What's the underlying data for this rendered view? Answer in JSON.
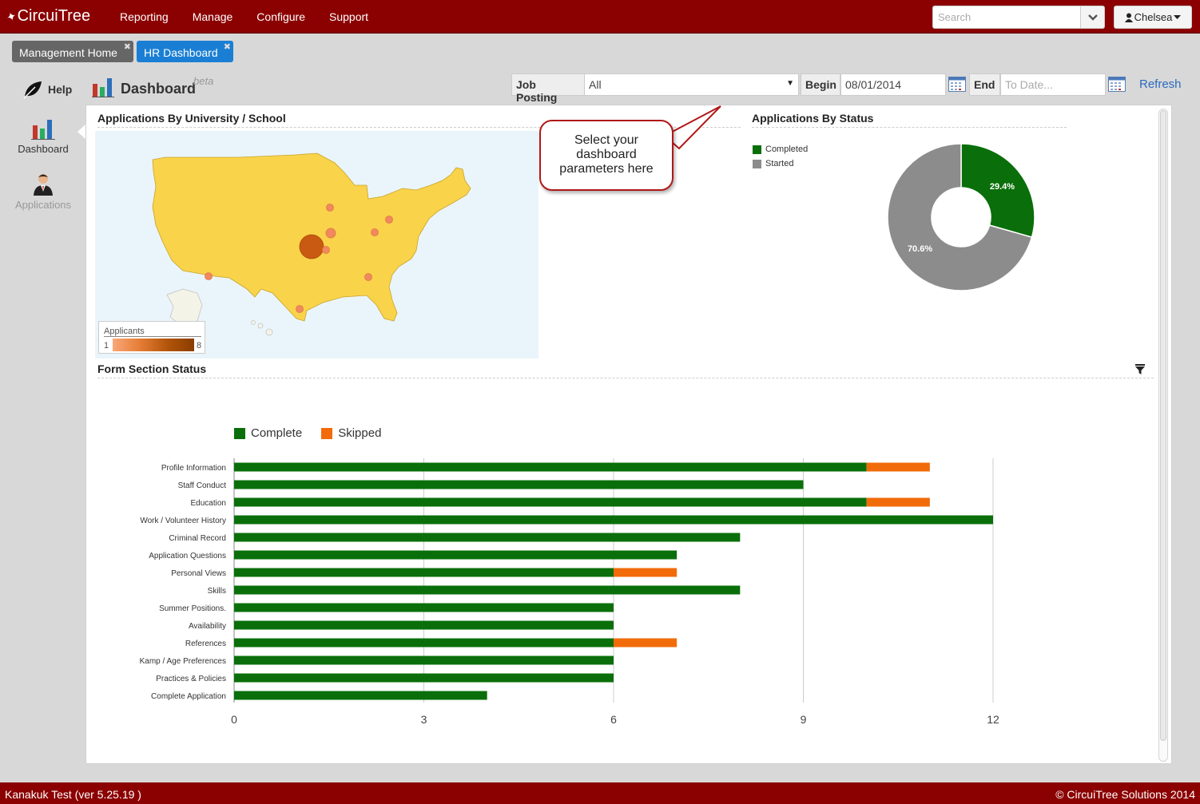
{
  "app": {
    "brand": "CircuiTree"
  },
  "nav": {
    "items": [
      "Reporting",
      "Manage",
      "Configure",
      "Support"
    ]
  },
  "search": {
    "placeholder": "Search"
  },
  "user": {
    "name": "Chelsea"
  },
  "tabs": [
    {
      "label": "Management Home",
      "active": false
    },
    {
      "label": "HR Dashboard",
      "active": true
    }
  ],
  "sidebar": {
    "help": "Help",
    "items": [
      {
        "label": "Dashboard",
        "icon": "bar-chart-icon",
        "active": true
      },
      {
        "label": "Applications",
        "icon": "person-icon",
        "active": false
      }
    ]
  },
  "header": {
    "title": "Dashboard",
    "badge": "beta",
    "job_posting_label": "Job Posting",
    "job_posting_value": "All",
    "begin_label": "Begin",
    "begin_value": "08/01/2014",
    "end_label": "End",
    "end_placeholder": "To Date...",
    "refresh": "Refresh"
  },
  "callout": {
    "line1": "Select your",
    "line2": "dashboard",
    "line3": "parameters here"
  },
  "map": {
    "title": "Applications By University / School",
    "legend_title": "Applicants",
    "legend_min": "1",
    "legend_max": "8",
    "colors": {
      "land": "#f9d34a",
      "bubble_small": "#f08a5d",
      "bubble_large": "#c85a12"
    }
  },
  "status": {
    "title": "Applications By Status"
  },
  "form_section": {
    "title": "Form Section Status"
  },
  "chart_data": [
    {
      "type": "pie",
      "title": "Applications By Status",
      "donut": true,
      "categories": [
        "Completed",
        "Started"
      ],
      "values": [
        29.4,
        70.6
      ],
      "labels": [
        "29.4%",
        "70.6%"
      ],
      "colors": [
        "#0a6f0a",
        "#8c8c8c"
      ],
      "legend": "top-left"
    },
    {
      "type": "bar",
      "orientation": "horizontal",
      "stacked": true,
      "title": "Form Section Status",
      "categories": [
        "Profile Information",
        "Staff Conduct",
        "Education",
        "Work / Volunteer History",
        "Criminal Record",
        "Application Questions",
        "Personal Views",
        "Skills",
        "Summer Positions.",
        "Availability",
        "References",
        "Kamp / Age Preferences",
        "Practices & Policies",
        "Complete Application"
      ],
      "series": [
        {
          "name": "Complete",
          "color": "#0a6f0a",
          "values": [
            10,
            9,
            10,
            12,
            8,
            7,
            6,
            8,
            6,
            6,
            6,
            6,
            6,
            4
          ]
        },
        {
          "name": "Skipped",
          "color": "#f26b0a",
          "values": [
            1,
            0,
            1,
            0,
            0,
            0,
            1,
            0,
            0,
            0,
            1,
            0,
            0,
            0
          ]
        }
      ],
      "xlim": [
        0,
        12
      ],
      "xticks": [
        "0",
        "3",
        "6",
        "9",
        "12"
      ],
      "grid": true,
      "legend": "top-left"
    }
  ],
  "footer": {
    "left": "Kanakuk Test (ver 5.25.19 )",
    "right": "© CircuiTree Solutions 2014"
  }
}
